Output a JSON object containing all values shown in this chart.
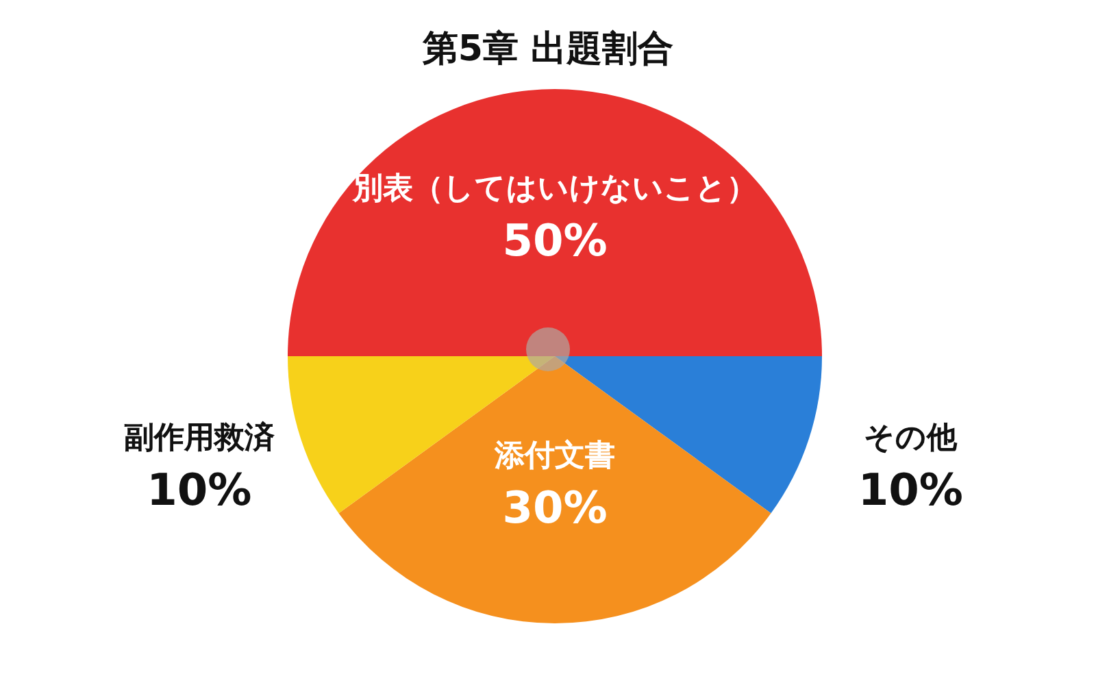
{
  "chart_data": {
    "type": "pie",
    "title": "第5章 出題割合",
    "categories": [
      "別表（してはいけないこと）",
      "その他",
      "添付文書",
      "副作用救済"
    ],
    "values": [
      50,
      10,
      30,
      10
    ],
    "value_labels": [
      "50%",
      "10%",
      "30%",
      "10%"
    ],
    "colors": [
      "#e8312f",
      "#2a7fd8",
      "#f5901e",
      "#f7d11a"
    ]
  }
}
